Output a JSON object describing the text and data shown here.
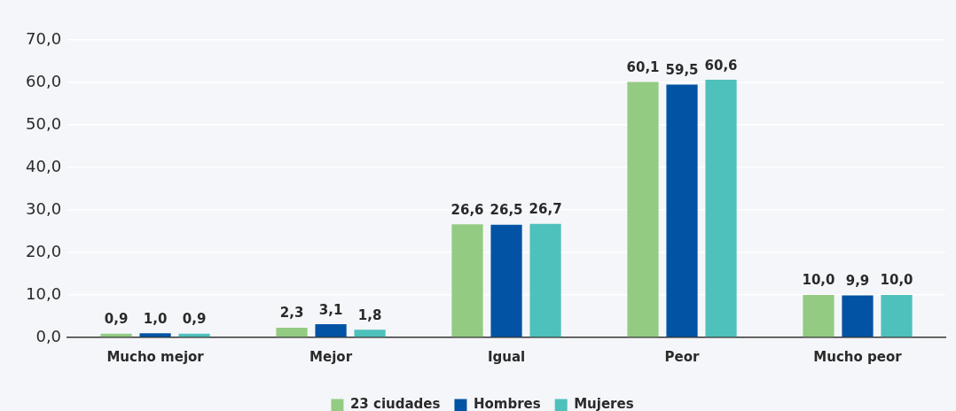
{
  "chart_data": {
    "type": "bar",
    "categories": [
      "Mucho mejor",
      "Mejor",
      "Igual",
      "Peor",
      "Mucho peor"
    ],
    "series": [
      {
        "name": "23 ciudades",
        "color": "#93cb82",
        "values": [
          0.9,
          2.3,
          26.6,
          60.1,
          10.0
        ],
        "value_labels": [
          "0,9",
          "2,3",
          "26,6",
          "60,1",
          "10,0"
        ]
      },
      {
        "name": "Hombres",
        "color": "#0353a4",
        "values": [
          1.0,
          3.1,
          26.5,
          59.5,
          9.9
        ],
        "value_labels": [
          "1,0",
          "3,1",
          "26,5",
          "59,5",
          "9,9"
        ]
      },
      {
        "name": "Mujeres",
        "color": "#4fc1bc",
        "values": [
          0.9,
          1.8,
          26.7,
          60.6,
          10.0
        ],
        "value_labels": [
          "0,9",
          "1,8",
          "26,7",
          "60,6",
          "10,0"
        ]
      }
    ],
    "ylim": [
      0,
      70
    ],
    "yticks": [
      {
        "value": 0,
        "label": "0,0"
      },
      {
        "value": 10,
        "label": "10,0"
      },
      {
        "value": 20,
        "label": "20,0"
      },
      {
        "value": 30,
        "label": "30,0"
      },
      {
        "value": 40,
        "label": "40,0"
      },
      {
        "value": 50,
        "label": "50,0"
      },
      {
        "value": 60,
        "label": "60,0"
      },
      {
        "value": 70,
        "label": "70,0"
      }
    ],
    "grid": "y",
    "legend": "bottom"
  }
}
